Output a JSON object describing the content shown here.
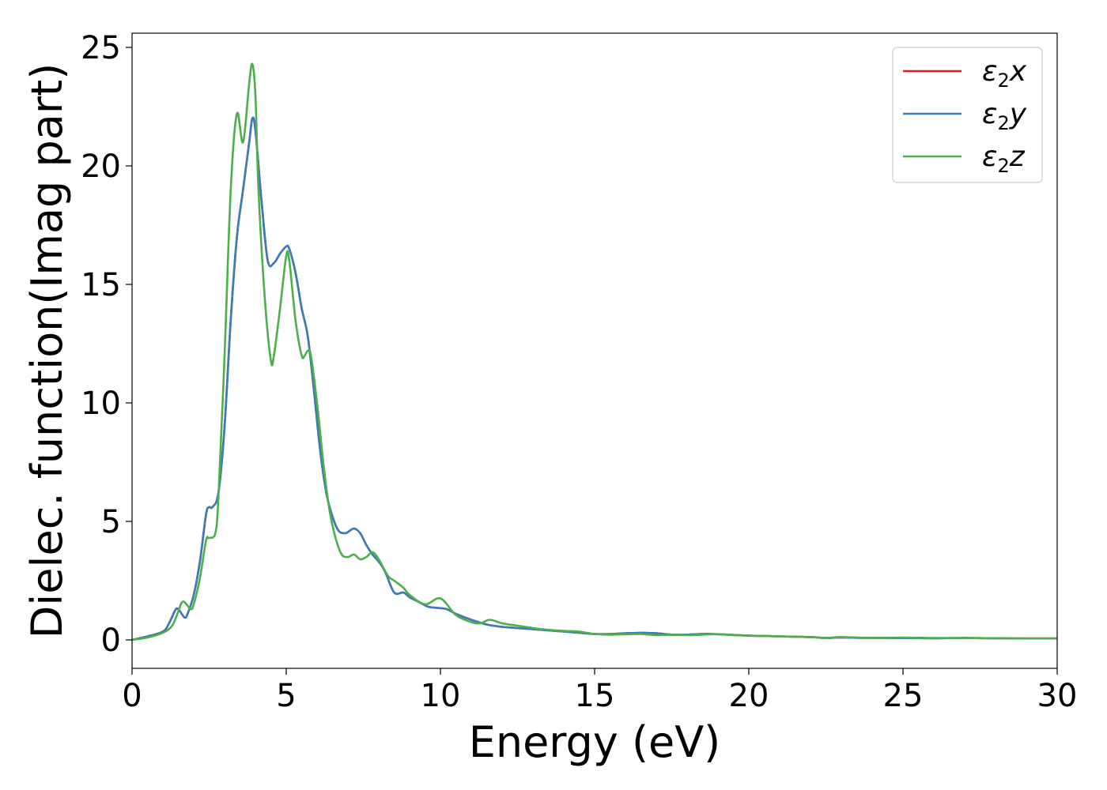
{
  "chart_data": {
    "type": "line",
    "xlabel": "Energy (eV)",
    "ylabel": "Dielec. function(Imag part)",
    "xlim": [
      0,
      30
    ],
    "ylim": [
      -1.2,
      25.6
    ],
    "xticks": [
      0,
      5,
      10,
      15,
      20,
      25,
      30
    ],
    "yticks": [
      0,
      5,
      10,
      15,
      20,
      25
    ],
    "grid": false,
    "legend_position": "top-right",
    "series": [
      {
        "name": "ε2x",
        "legend_symbol": "ε",
        "legend_sub": "2",
        "legend_var": "x",
        "color": "#e41a1c",
        "x": [
          0,
          0.5,
          1.0,
          1.2,
          1.4,
          1.5,
          1.7,
          1.8,
          2.0,
          2.2,
          2.4,
          2.5,
          2.6,
          2.8,
          3.0,
          3.2,
          3.4,
          3.6,
          3.8,
          3.9,
          4.0,
          4.2,
          4.4,
          4.6,
          4.8,
          5.0,
          5.1,
          5.3,
          5.5,
          5.7,
          5.9,
          6.1,
          6.3,
          6.5,
          6.7,
          6.9,
          7.0,
          7.2,
          7.4,
          7.6,
          7.8,
          8.0,
          8.2,
          8.5,
          8.8,
          9.0,
          9.3,
          9.6,
          9.9,
          10.2,
          10.5,
          11.0,
          11.5,
          12.0,
          12.5,
          13.0,
          13.5,
          14.0,
          14.5,
          15.0,
          15.5,
          16.0,
          16.5,
          17.0,
          17.5,
          18.0,
          18.5,
          19.0,
          20.0,
          21.0,
          22.0,
          22.5,
          23.0,
          24.0,
          25.0,
          26.0,
          27.0,
          28.0,
          29.0,
          30.0
        ],
        "y": [
          0.0,
          0.15,
          0.35,
          0.7,
          1.25,
          1.3,
          0.95,
          1.1,
          1.9,
          3.3,
          5.3,
          5.6,
          5.6,
          6.2,
          9.0,
          13.5,
          17.0,
          19.0,
          21.0,
          22.0,
          21.5,
          18.5,
          16.0,
          15.9,
          16.3,
          16.6,
          16.5,
          15.5,
          14.0,
          12.8,
          10.5,
          8.0,
          6.2,
          5.2,
          4.6,
          4.5,
          4.55,
          4.7,
          4.5,
          4.0,
          3.6,
          3.3,
          2.9,
          2.0,
          2.0,
          1.8,
          1.6,
          1.4,
          1.35,
          1.3,
          1.1,
          0.85,
          0.65,
          0.55,
          0.5,
          0.45,
          0.4,
          0.35,
          0.3,
          0.25,
          0.25,
          0.28,
          0.3,
          0.28,
          0.22,
          0.22,
          0.25,
          0.24,
          0.18,
          0.15,
          0.12,
          0.08,
          0.1,
          0.08,
          0.08,
          0.07,
          0.08,
          0.07,
          0.06,
          0.06
        ]
      },
      {
        "name": "ε2y",
        "legend_symbol": "ε",
        "legend_sub": "2",
        "legend_var": "y",
        "color": "#377eb8",
        "x": [
          0,
          0.5,
          1.0,
          1.2,
          1.4,
          1.5,
          1.7,
          1.8,
          2.0,
          2.2,
          2.4,
          2.5,
          2.6,
          2.8,
          3.0,
          3.2,
          3.4,
          3.6,
          3.8,
          3.9,
          4.0,
          4.2,
          4.4,
          4.6,
          4.8,
          5.0,
          5.1,
          5.3,
          5.5,
          5.7,
          5.9,
          6.1,
          6.3,
          6.5,
          6.7,
          6.9,
          7.0,
          7.2,
          7.4,
          7.6,
          7.8,
          8.0,
          8.2,
          8.5,
          8.8,
          9.0,
          9.3,
          9.6,
          9.9,
          10.2,
          10.5,
          11.0,
          11.5,
          12.0,
          12.5,
          13.0,
          13.5,
          14.0,
          14.5,
          15.0,
          15.5,
          16.0,
          16.5,
          17.0,
          17.5,
          18.0,
          18.5,
          19.0,
          20.0,
          21.0,
          22.0,
          22.5,
          23.0,
          24.0,
          25.0,
          26.0,
          27.0,
          28.0,
          29.0,
          30.0
        ],
        "y": [
          0.0,
          0.15,
          0.35,
          0.7,
          1.25,
          1.3,
          0.95,
          1.1,
          1.9,
          3.3,
          5.3,
          5.6,
          5.6,
          6.2,
          9.0,
          13.5,
          17.0,
          19.0,
          21.0,
          22.0,
          21.5,
          18.5,
          16.0,
          15.9,
          16.3,
          16.6,
          16.5,
          15.5,
          14.0,
          12.8,
          10.5,
          8.0,
          6.2,
          5.2,
          4.6,
          4.5,
          4.55,
          4.7,
          4.5,
          4.0,
          3.6,
          3.3,
          2.9,
          2.0,
          2.0,
          1.8,
          1.6,
          1.4,
          1.35,
          1.3,
          1.1,
          0.85,
          0.65,
          0.55,
          0.5,
          0.45,
          0.4,
          0.35,
          0.3,
          0.25,
          0.25,
          0.28,
          0.3,
          0.28,
          0.22,
          0.22,
          0.25,
          0.24,
          0.18,
          0.15,
          0.12,
          0.08,
          0.1,
          0.08,
          0.08,
          0.07,
          0.08,
          0.07,
          0.06,
          0.06
        ]
      },
      {
        "name": "ε2z",
        "legend_symbol": "ε",
        "legend_sub": "2",
        "legend_var": "z",
        "color": "#4daf4a",
        "x": [
          0,
          0.5,
          1.0,
          1.3,
          1.5,
          1.6,
          1.7,
          1.9,
          2.0,
          2.2,
          2.4,
          2.5,
          2.7,
          2.8,
          3.0,
          3.2,
          3.4,
          3.6,
          3.8,
          3.9,
          4.0,
          4.1,
          4.3,
          4.5,
          4.6,
          4.8,
          5.0,
          5.1,
          5.3,
          5.5,
          5.6,
          5.7,
          5.8,
          6.0,
          6.2,
          6.4,
          6.6,
          6.8,
          7.0,
          7.2,
          7.4,
          7.6,
          7.8,
          8.0,
          8.3,
          8.5,
          8.8,
          9.0,
          9.5,
          10.0,
          10.5,
          11.0,
          11.3,
          11.6,
          12.0,
          12.5,
          13.0,
          13.3,
          14.0,
          14.5,
          15.0,
          15.5,
          16.0,
          16.5,
          17.0,
          17.5,
          18.0,
          18.5,
          19.0,
          20.0,
          21.0,
          22.0,
          22.5,
          23.0,
          24.0,
          25.0,
          26.0,
          27.0,
          28.0,
          29.0,
          30.0
        ],
        "y": [
          0.0,
          0.1,
          0.3,
          0.6,
          1.2,
          1.55,
          1.6,
          1.3,
          1.5,
          2.6,
          4.2,
          4.3,
          4.5,
          6.0,
          12.0,
          19.0,
          22.2,
          21.0,
          23.5,
          24.3,
          23.0,
          19.0,
          14.5,
          11.8,
          12.0,
          14.0,
          16.2,
          16.0,
          13.5,
          12.0,
          12.0,
          12.2,
          12.0,
          10.0,
          7.5,
          5.5,
          4.3,
          3.6,
          3.5,
          3.6,
          3.4,
          3.5,
          3.7,
          3.4,
          2.7,
          2.5,
          2.2,
          1.9,
          1.5,
          1.75,
          1.05,
          0.75,
          0.7,
          0.85,
          0.7,
          0.6,
          0.5,
          0.45,
          0.38,
          0.35,
          0.25,
          0.22,
          0.24,
          0.25,
          0.2,
          0.22,
          0.2,
          0.22,
          0.24,
          0.18,
          0.15,
          0.12,
          0.08,
          0.12,
          0.08,
          0.1,
          0.08,
          0.08,
          0.07,
          0.06,
          0.06
        ]
      }
    ]
  }
}
